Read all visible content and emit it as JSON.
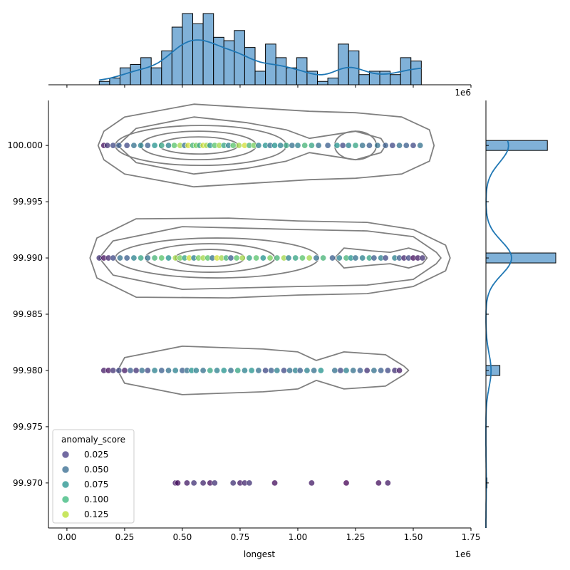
{
  "chart_data": {
    "type": "scatter",
    "plot_kind": "jointplot",
    "xlabel": "longest",
    "ylabel": "",
    "x_offset_text": "1e6",
    "top_offset_text": "1e6",
    "xlim": [
      -80000,
      1750000
    ],
    "ylim": [
      99.966,
      100.004
    ],
    "x_ticks": [
      0,
      250000,
      500000,
      750000,
      1000000,
      1250000,
      1500000,
      1750000
    ],
    "x_tick_labels": [
      "0.00",
      "0.25",
      "0.50",
      "0.75",
      "1.00",
      "1.25",
      "1.50",
      "1.75"
    ],
    "y_ticks": [
      99.97,
      99.975,
      99.98,
      99.985,
      99.99,
      99.995,
      100.0
    ],
    "y_tick_labels": [
      "99.970",
      "99.975",
      "99.980",
      "99.985",
      "99.990",
      "99.995",
      "100.000"
    ],
    "legend": {
      "title": "anomaly_score",
      "placement": "lower-left",
      "entries": [
        {
          "label": "0.025",
          "color": "#443983"
        },
        {
          "label": "0.050",
          "color": "#31688e"
        },
        {
          "label": "0.075",
          "color": "#21918c"
        },
        {
          "label": "0.100",
          "color": "#35b779"
        },
        {
          "label": "0.125",
          "color": "#b5de2b"
        }
      ]
    },
    "hue_range": [
      0.0,
      0.14
    ],
    "colormap": [
      "#440154",
      "#3b528b",
      "#21918c",
      "#5ec962",
      "#fde725"
    ],
    "points": {
      "y100000": {
        "y": 100.0,
        "x": [
          160000,
          175000,
          200000,
          225000,
          260000,
          290000,
          320000,
          350000,
          380000,
          410000,
          440000,
          465000,
          490000,
          510000,
          525000,
          545000,
          560000,
          575000,
          590000,
          605000,
          620000,
          640000,
          660000,
          680000,
          700000,
          720000,
          745000,
          770000,
          790000,
          810000,
          830000,
          860000,
          880000,
          900000,
          925000,
          950000,
          975000,
          1000000,
          1030000,
          1060000,
          1090000,
          1130000,
          1170000,
          1195000,
          1220000,
          1250000,
          1280000,
          1310000,
          1345000,
          1380000,
          1410000,
          1440000,
          1470000,
          1500000,
          1530000
        ],
        "score": [
          0.005,
          0.02,
          0.03,
          0.04,
          0.03,
          0.05,
          0.06,
          0.04,
          0.07,
          0.08,
          0.06,
          0.1,
          0.12,
          0.05,
          0.13,
          0.09,
          0.11,
          0.08,
          0.13,
          0.12,
          0.07,
          0.1,
          0.12,
          0.08,
          0.06,
          0.1,
          0.12,
          0.13,
          0.09,
          0.11,
          0.06,
          0.07,
          0.05,
          0.07,
          0.06,
          0.08,
          0.05,
          0.06,
          0.09,
          0.08,
          0.05,
          0.04,
          0.07,
          0.03,
          0.06,
          0.08,
          0.05,
          0.04,
          0.05,
          0.04,
          0.03,
          0.05,
          0.04,
          0.03,
          0.05
        ]
      },
      "y99990": {
        "y": 99.99,
        "x": [
          140000,
          160000,
          180000,
          200000,
          230000,
          260000,
          290000,
          320000,
          350000,
          380000,
          410000,
          440000,
          470000,
          490000,
          510000,
          530000,
          550000,
          570000,
          590000,
          610000,
          630000,
          650000,
          670000,
          690000,
          710000,
          735000,
          760000,
          790000,
          820000,
          850000,
          880000,
          910000,
          940000,
          960000,
          990000,
          1020000,
          1050000,
          1080000,
          1110000,
          1150000,
          1180000,
          1210000,
          1230000,
          1250000,
          1280000,
          1310000,
          1330000,
          1360000,
          1380000,
          1420000,
          1440000,
          1460000,
          1480000,
          1500000,
          1520000,
          1540000
        ],
        "score": [
          0.02,
          0.005,
          0.015,
          0.03,
          0.05,
          0.04,
          0.06,
          0.08,
          0.05,
          0.09,
          0.1,
          0.07,
          0.12,
          0.11,
          0.08,
          0.13,
          0.06,
          0.11,
          0.12,
          0.1,
          0.05,
          0.13,
          0.12,
          0.09,
          0.04,
          0.1,
          0.12,
          0.08,
          0.1,
          0.07,
          0.11,
          0.09,
          0.12,
          0.06,
          0.08,
          0.1,
          0.12,
          0.05,
          0.09,
          0.04,
          0.06,
          0.09,
          0.07,
          0.05,
          0.06,
          0.08,
          0.04,
          0.06,
          0.03,
          0.06,
          0.04,
          0.015,
          0.03,
          0.005,
          0.01,
          0.02
        ]
      },
      "y99980": {
        "y": 99.98,
        "x": [
          160000,
          180000,
          200000,
          225000,
          250000,
          275000,
          300000,
          325000,
          350000,
          380000,
          410000,
          440000,
          470000,
          500000,
          520000,
          540000,
          560000,
          590000,
          620000,
          650000,
          680000,
          710000,
          740000,
          770000,
          800000,
          830000,
          860000,
          885000,
          910000,
          940000,
          965000,
          990000,
          1010000,
          1040000,
          1070000,
          1100000,
          1160000,
          1185000,
          1210000,
          1240000,
          1270000,
          1300000,
          1330000,
          1360000,
          1390000,
          1420000,
          1440000
        ],
        "score": [
          0.01,
          0.005,
          0.02,
          0.03,
          0.01,
          0.04,
          0.02,
          0.05,
          0.03,
          0.06,
          0.04,
          0.05,
          0.06,
          0.04,
          0.05,
          0.07,
          0.06,
          0.05,
          0.08,
          0.06,
          0.07,
          0.05,
          0.08,
          0.06,
          0.07,
          0.05,
          0.03,
          0.04,
          0.06,
          0.03,
          0.05,
          0.06,
          0.04,
          0.06,
          0.05,
          0.07,
          0.05,
          0.03,
          0.06,
          0.05,
          0.04,
          0.02,
          0.05,
          0.04,
          0.03,
          0.02,
          0.01
        ]
      },
      "y99970": {
        "y": 99.97,
        "x": [
          470000,
          480000,
          520000,
          550000,
          590000,
          620000,
          640000,
          720000,
          750000,
          770000,
          790000,
          900000,
          1060000,
          1210000,
          1350000,
          1390000
        ],
        "score": [
          0.01,
          0.005,
          0.01,
          0.02,
          0.015,
          0.005,
          0.02,
          0.02,
          0.01,
          0.015,
          0.02,
          0.005,
          0.01,
          0.0,
          0.005,
          0.01
        ]
      }
    },
    "x_histogram": {
      "bin_start": 140000,
      "bin_width": 45000,
      "counts": [
        1,
        2,
        5,
        6,
        8,
        5,
        10,
        17,
        21,
        18,
        21,
        14,
        13,
        16,
        11,
        4,
        12,
        8,
        5,
        8,
        4,
        1,
        2,
        12,
        10,
        3,
        4,
        4,
        3,
        8,
        7
      ]
    },
    "y_histogram": {
      "bars": [
        {
          "y": 100.0,
          "count": 0.88
        },
        {
          "y": 99.99,
          "count": 1.0
        },
        {
          "y": 99.98,
          "count": 0.2
        },
        {
          "y": 99.97,
          "count": 0.015
        }
      ]
    }
  }
}
